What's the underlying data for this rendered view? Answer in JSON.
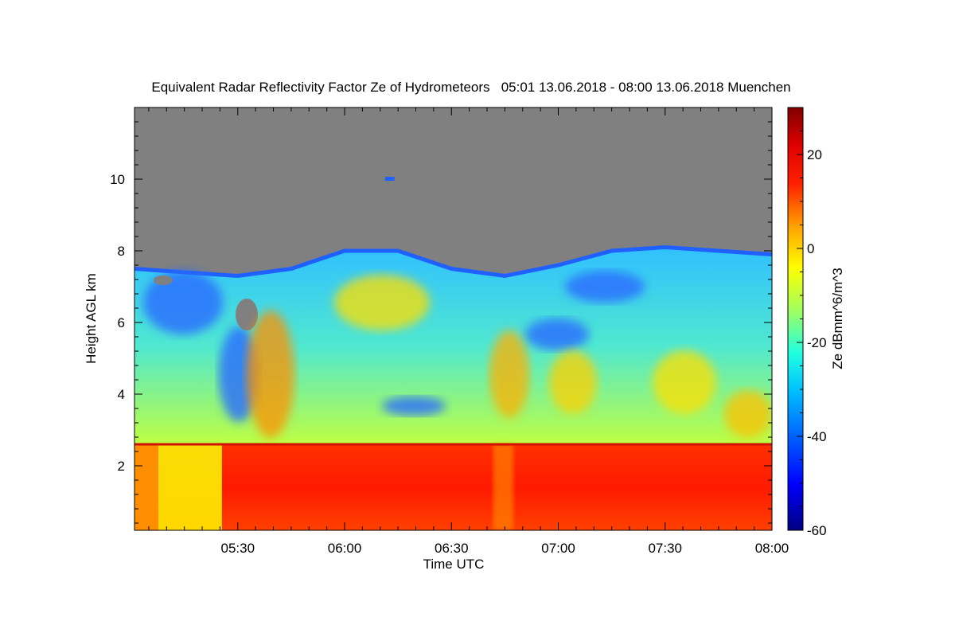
{
  "chart_data": {
    "type": "heatmap",
    "title": "Equivalent Radar Reflectivity Factor Ze of Hydrometeors   05:01 13.06.2018 - 08:00 13.06.2018 Muenchen",
    "xlabel": "Time UTC",
    "ylabel": "Height AGL km",
    "colorbar_label": "Ze dBmm^6/m^3",
    "x_range": [
      "05:01",
      "08:00"
    ],
    "x_ticks": [
      "05:30",
      "06:00",
      "06:30",
      "07:00",
      "07:30",
      "08:00"
    ],
    "y_range": [
      0.2,
      12.0
    ],
    "y_ticks": [
      2,
      4,
      6,
      8,
      10
    ],
    "colorbar_range": [
      -60,
      30
    ],
    "colorbar_ticks": [
      20,
      0,
      -20,
      -40,
      -60
    ],
    "no_data_color": "#808080",
    "colormap": [
      "#000080",
      "#0000ff",
      "#0080ff",
      "#00ffff",
      "#80ff80",
      "#ffff00",
      "#ff8000",
      "#ff0000",
      "#800000"
    ],
    "cloud_top_km": [
      {
        "time": "05:01",
        "height": 7.5
      },
      {
        "time": "05:15",
        "height": 7.4
      },
      {
        "time": "05:30",
        "height": 7.3
      },
      {
        "time": "05:45",
        "height": 7.5
      },
      {
        "time": "06:00",
        "height": 8.0
      },
      {
        "time": "06:15",
        "height": 8.0
      },
      {
        "time": "06:30",
        "height": 7.5
      },
      {
        "time": "06:45",
        "height": 7.3
      },
      {
        "time": "07:00",
        "height": 7.6
      },
      {
        "time": "07:15",
        "height": 8.0
      },
      {
        "time": "07:30",
        "height": 8.1
      },
      {
        "time": "07:45",
        "height": 8.0
      },
      {
        "time": "08:00",
        "height": 7.9
      }
    ],
    "melting_layer_km": 2.6
  }
}
